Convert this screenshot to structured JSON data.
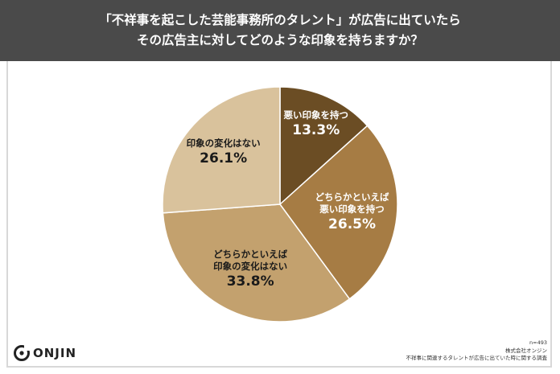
{
  "header": {
    "line1": "「不祥事を起こした芸能事務所のタレント」が広告に出ていたら",
    "line2": "その広告主に対してどのような印象を持ちますか？"
  },
  "chart_data": {
    "type": "pie",
    "start_angle_deg": 0,
    "direction": "clockwise",
    "slices": [
      {
        "label": [
          "悪い印象を持つ"
        ],
        "value": 13.3,
        "display": "13.3%",
        "color": "#6b4d24",
        "text_color": "#ffffff"
      },
      {
        "label": [
          "どちらかといえば",
          "悪い印象を持つ"
        ],
        "value": 26.5,
        "display": "26.5%",
        "color": "#a67c44",
        "text_color": "#ffffff"
      },
      {
        "label": [
          "どちらかといえば",
          "印象の変化はない"
        ],
        "value": 33.8,
        "display": "33.8%",
        "color": "#c3a16e",
        "text_color": "#1a1a1a"
      },
      {
        "label": [
          "印象の変化はない"
        ],
        "value": 26.1,
        "display": "26.1%",
        "color": "#d9c29c",
        "text_color": "#1a1a1a"
      }
    ]
  },
  "logo": {
    "text": "ONJIN"
  },
  "footnote": {
    "n": "n=493",
    "company": "株式会社オンジン",
    "survey": "不祥事に関連するタレントが広告に出ていた時に関する調査"
  }
}
